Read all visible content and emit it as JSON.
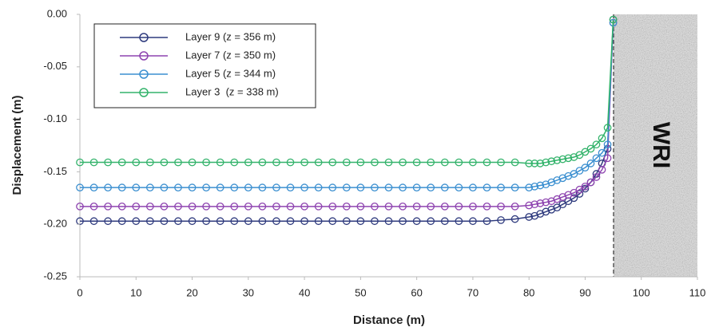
{
  "chart_data": {
    "type": "line",
    "x_label": "Distance (m)",
    "y_label": "Displacement (m)",
    "annotation": "WRI",
    "xlim": [
      0,
      110
    ],
    "xticks": [
      0,
      10,
      20,
      30,
      40,
      50,
      60,
      70,
      80,
      90,
      100,
      110
    ],
    "ylim": [
      -0.25,
      0
    ],
    "yticks": [
      {
        "value": -0.25,
        "label": "-0.25"
      },
      {
        "value": -0.2,
        "label": "-0.20"
      },
      {
        "value": -0.15,
        "label": "-0.15"
      },
      {
        "value": -0.1,
        "label": "-0.10"
      },
      {
        "value": -0.05,
        "label": "-0.05"
      },
      {
        "value": 0,
        "label": "0.00"
      }
    ],
    "grid": false,
    "legend": "upper left",
    "x": [
      0,
      2.5,
      5,
      7.5,
      10,
      12.5,
      15,
      17.5,
      20,
      22.5,
      25,
      27.5,
      30,
      32.5,
      35,
      37.5,
      40,
      42.5,
      45,
      47.5,
      50,
      52.5,
      55,
      57.5,
      60,
      62.5,
      65,
      67.5,
      70,
      72.5,
      75,
      77.5,
      80,
      81,
      82,
      83,
      84,
      85,
      86,
      87,
      88,
      89,
      90,
      91,
      92,
      93,
      94,
      95
    ],
    "series": [
      {
        "name": "Layer 9 (z = 356 m)",
        "color": "#2f3b7e",
        "values": [
          -0.197,
          -0.197,
          -0.197,
          -0.197,
          -0.197,
          -0.197,
          -0.197,
          -0.197,
          -0.197,
          -0.197,
          -0.197,
          -0.197,
          -0.197,
          -0.197,
          -0.197,
          -0.197,
          -0.197,
          -0.197,
          -0.197,
          -0.197,
          -0.197,
          -0.197,
          -0.197,
          -0.197,
          -0.197,
          -0.197,
          -0.197,
          -0.197,
          -0.197,
          -0.197,
          -0.196,
          -0.195,
          -0.193,
          -0.192,
          -0.19,
          -0.188,
          -0.186,
          -0.184,
          -0.181,
          -0.178,
          -0.175,
          -0.171,
          -0.166,
          -0.16,
          -0.152,
          -0.142,
          -0.128,
          -0.005
        ]
      },
      {
        "name": "Layer 7 (z = 350 m)",
        "color": "#8e44b0",
        "values": [
          -0.183,
          -0.183,
          -0.183,
          -0.183,
          -0.183,
          -0.183,
          -0.183,
          -0.183,
          -0.183,
          -0.183,
          -0.183,
          -0.183,
          -0.183,
          -0.183,
          -0.183,
          -0.183,
          -0.183,
          -0.183,
          -0.183,
          -0.183,
          -0.183,
          -0.183,
          -0.183,
          -0.183,
          -0.183,
          -0.183,
          -0.183,
          -0.183,
          -0.183,
          -0.183,
          -0.183,
          -0.183,
          -0.182,
          -0.181,
          -0.18,
          -0.179,
          -0.178,
          -0.176,
          -0.174,
          -0.172,
          -0.17,
          -0.167,
          -0.164,
          -0.16,
          -0.155,
          -0.148,
          -0.137,
          -0.008
        ]
      },
      {
        "name": "Layer 5 (z = 344 m)",
        "color": "#3b8fd0",
        "values": [
          -0.165,
          -0.165,
          -0.165,
          -0.165,
          -0.165,
          -0.165,
          -0.165,
          -0.165,
          -0.165,
          -0.165,
          -0.165,
          -0.165,
          -0.165,
          -0.165,
          -0.165,
          -0.165,
          -0.165,
          -0.165,
          -0.165,
          -0.165,
          -0.165,
          -0.165,
          -0.165,
          -0.165,
          -0.165,
          -0.165,
          -0.165,
          -0.165,
          -0.165,
          -0.165,
          -0.165,
          -0.165,
          -0.165,
          -0.164,
          -0.163,
          -0.162,
          -0.16,
          -0.158,
          -0.156,
          -0.154,
          -0.152,
          -0.149,
          -0.146,
          -0.142,
          -0.137,
          -0.132,
          -0.124,
          -0.008
        ]
      },
      {
        "name": "Layer 3  (z = 338 m)",
        "color": "#33b36b",
        "values": [
          -0.141,
          -0.141,
          -0.141,
          -0.141,
          -0.141,
          -0.141,
          -0.141,
          -0.141,
          -0.141,
          -0.141,
          -0.141,
          -0.141,
          -0.141,
          -0.141,
          -0.141,
          -0.141,
          -0.141,
          -0.141,
          -0.141,
          -0.141,
          -0.141,
          -0.141,
          -0.141,
          -0.141,
          -0.141,
          -0.141,
          -0.141,
          -0.141,
          -0.141,
          -0.141,
          -0.141,
          -0.141,
          -0.142,
          -0.142,
          -0.142,
          -0.141,
          -0.14,
          -0.139,
          -0.138,
          -0.137,
          -0.136,
          -0.134,
          -0.131,
          -0.128,
          -0.124,
          -0.118,
          -0.108,
          -0.005
        ]
      }
    ]
  }
}
